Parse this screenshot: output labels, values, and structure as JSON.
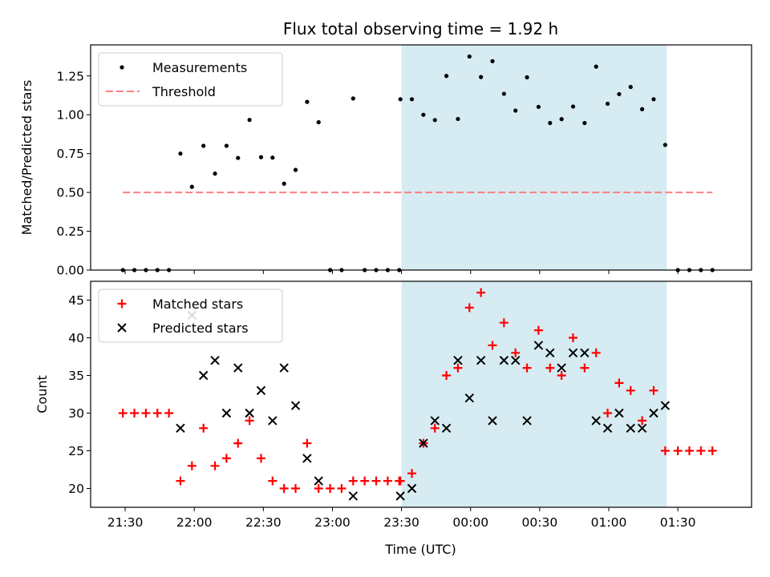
{
  "chart_data": {
    "type": "scatter",
    "title": "Flux total observing time = 1.92 h",
    "xlabel": "Time (UTC)",
    "x_ticks": [
      {
        "value": 1290,
        "label": "21:30"
      },
      {
        "value": 1320,
        "label": "22:00"
      },
      {
        "value": 1350,
        "label": "22:30"
      },
      {
        "value": 1380,
        "label": "23:00"
      },
      {
        "value": 1410,
        "label": "23:30"
      },
      {
        "value": 1440,
        "label": "00:00"
      },
      {
        "value": 1470,
        "label": "00:30"
      },
      {
        "value": 1500,
        "label": "01:00"
      },
      {
        "value": 1530,
        "label": "01:30"
      }
    ],
    "xlim": [
      1275,
      1562
    ],
    "shaded_region": {
      "x": [
        1410,
        1525.2
      ],
      "color": "#add8e6"
    },
    "panels": [
      {
        "ylabel": "Matched/Predicted stars",
        "ylim": [
          0,
          1.45
        ],
        "yticks": [
          0.0,
          0.25,
          0.5,
          0.75,
          1.0,
          1.25
        ],
        "ytick_labels": [
          "0.00",
          "0.25",
          "0.50",
          "0.75",
          "1.00",
          "1.25"
        ],
        "legend_location": "upper left",
        "series": [
          {
            "name": "Measurements",
            "marker": "dot",
            "color": "#000000",
            "points": [
              [
                1289,
                0.0
              ],
              [
                1294,
                0.0
              ],
              [
                1299,
                0.0
              ],
              [
                1304,
                0.0
              ],
              [
                1309,
                0.0
              ],
              [
                1314,
                0.75
              ],
              [
                1319,
                0.536
              ],
              [
                1324,
                0.8
              ],
              [
                1329,
                0.621
              ],
              [
                1334,
                0.8
              ],
              [
                1339,
                0.722
              ],
              [
                1344,
                0.967
              ],
              [
                1349,
                0.727
              ],
              [
                1354,
                0.724
              ],
              [
                1359,
                0.556
              ],
              [
                1364,
                0.645
              ],
              [
                1369,
                1.083
              ],
              [
                1374,
                0.952
              ],
              [
                1379,
                0.0
              ],
              [
                1384,
                0.0
              ],
              [
                1389,
                1.105
              ],
              [
                1394,
                0.0
              ],
              [
                1399,
                0.0
              ],
              [
                1404,
                0.0
              ],
              [
                1409,
                0.0
              ],
              [
                1409.5,
                1.1
              ],
              [
                1414.5,
                1.1
              ],
              [
                1419.5,
                1.0
              ],
              [
                1424.5,
                0.966
              ],
              [
                1429.5,
                1.25
              ],
              [
                1434.5,
                0.973
              ],
              [
                1439.5,
                1.375
              ],
              [
                1444.5,
                1.243
              ],
              [
                1449.5,
                1.345
              ],
              [
                1454.5,
                1.135
              ],
              [
                1459.5,
                1.027
              ],
              [
                1464.5,
                1.241
              ],
              [
                1469.5,
                1.051
              ],
              [
                1474.5,
                0.947
              ],
              [
                1479.5,
                0.972
              ],
              [
                1484.5,
                1.053
              ],
              [
                1489.5,
                0.947
              ],
              [
                1494.5,
                1.31
              ],
              [
                1499.5,
                1.071
              ],
              [
                1504.5,
                1.133
              ],
              [
                1509.5,
                1.179
              ],
              [
                1514.5,
                1.036
              ],
              [
                1519.5,
                1.1
              ],
              [
                1524.5,
                0.806
              ],
              [
                1530,
                0.0
              ],
              [
                1535,
                0.0
              ],
              [
                1540,
                0.0
              ],
              [
                1545,
                0.0
              ]
            ]
          },
          {
            "name": "Threshold",
            "marker": "dashed-line",
            "color": "#ff7f7f",
            "points": [
              [
                1289,
                0.5
              ],
              [
                1545,
                0.5
              ]
            ]
          }
        ]
      },
      {
        "ylabel": "Count",
        "ylim": [
          17.5,
          47.5
        ],
        "yticks": [
          20,
          25,
          30,
          35,
          40,
          45
        ],
        "ytick_labels": [
          "20",
          "25",
          "30",
          "35",
          "40",
          "45"
        ],
        "legend_location": "upper left",
        "series": [
          {
            "name": "Matched stars",
            "marker": "plus",
            "color": "#ff0000",
            "points": [
              [
                1289,
                30
              ],
              [
                1294,
                30
              ],
              [
                1299,
                30
              ],
              [
                1304,
                30
              ],
              [
                1309,
                30
              ],
              [
                1314,
                21
              ],
              [
                1319,
                23
              ],
              [
                1324,
                28
              ],
              [
                1329,
                23
              ],
              [
                1334,
                24
              ],
              [
                1339,
                26
              ],
              [
                1344,
                29
              ],
              [
                1349,
                24
              ],
              [
                1354,
                21
              ],
              [
                1359,
                20
              ],
              [
                1364,
                20
              ],
              [
                1369,
                26
              ],
              [
                1374,
                20
              ],
              [
                1379,
                20
              ],
              [
                1384,
                20
              ],
              [
                1389,
                21
              ],
              [
                1394,
                21
              ],
              [
                1399,
                21
              ],
              [
                1404,
                21
              ],
              [
                1409,
                21
              ],
              [
                1409.5,
                21
              ],
              [
                1414.5,
                22
              ],
              [
                1419.5,
                26
              ],
              [
                1424.5,
                28
              ],
              [
                1429.5,
                35
              ],
              [
                1434.5,
                36
              ],
              [
                1439.5,
                44
              ],
              [
                1444.5,
                46
              ],
              [
                1449.5,
                39
              ],
              [
                1454.5,
                42
              ],
              [
                1459.5,
                38
              ],
              [
                1464.5,
                36
              ],
              [
                1469.5,
                41
              ],
              [
                1474.5,
                36
              ],
              [
                1479.5,
                35
              ],
              [
                1484.5,
                40
              ],
              [
                1489.5,
                36
              ],
              [
                1494.5,
                38
              ],
              [
                1499.5,
                30
              ],
              [
                1504.5,
                34
              ],
              [
                1509.5,
                33
              ],
              [
                1514.5,
                29
              ],
              [
                1519.5,
                33
              ],
              [
                1524.5,
                25
              ],
              [
                1530,
                25
              ],
              [
                1535,
                25
              ],
              [
                1540,
                25
              ],
              [
                1545,
                25
              ]
            ]
          },
          {
            "name": "Predicted stars",
            "marker": "x",
            "color": "#000000",
            "points": [
              [
                1314,
                28
              ],
              [
                1319,
                43
              ],
              [
                1324,
                35
              ],
              [
                1329,
                37
              ],
              [
                1334,
                30
              ],
              [
                1339,
                36
              ],
              [
                1344,
                30
              ],
              [
                1349,
                33
              ],
              [
                1354,
                29
              ],
              [
                1359,
                36
              ],
              [
                1364,
                31
              ],
              [
                1369,
                24
              ],
              [
                1374,
                21
              ],
              [
                1389,
                19
              ],
              [
                1409.5,
                19
              ],
              [
                1414.5,
                20
              ],
              [
                1419.5,
                26
              ],
              [
                1424.5,
                29
              ],
              [
                1429.5,
                28
              ],
              [
                1434.5,
                37
              ],
              [
                1439.5,
                32
              ],
              [
                1444.5,
                37
              ],
              [
                1449.5,
                29
              ],
              [
                1454.5,
                37
              ],
              [
                1459.5,
                37
              ],
              [
                1464.5,
                29
              ],
              [
                1469.5,
                39
              ],
              [
                1474.5,
                38
              ],
              [
                1479.5,
                36
              ],
              [
                1484.5,
                38
              ],
              [
                1489.5,
                38
              ],
              [
                1494.5,
                29
              ],
              [
                1499.5,
                28
              ],
              [
                1504.5,
                30
              ],
              [
                1509.5,
                28
              ],
              [
                1514.5,
                28
              ],
              [
                1519.5,
                30
              ],
              [
                1524.5,
                31
              ]
            ]
          }
        ]
      }
    ]
  }
}
